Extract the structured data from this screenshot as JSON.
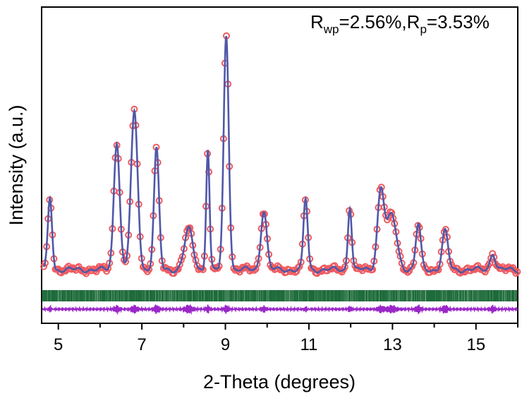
{
  "chart_data": {
    "type": "line",
    "xlabel": "2-Theta (degrees)",
    "ylabel": "Intensity (a.u.)",
    "xlim": [
      4.6,
      16.0
    ],
    "x_ticks": [
      "5",
      "7",
      "9",
      "11",
      "13",
      "15"
    ],
    "x_tick_values": [
      5,
      7,
      9,
      11,
      13,
      15
    ],
    "y_ticks_shown": false,
    "annotation": {
      "r1_base": "R",
      "r1_sub": "wp",
      "r1_val": "=2.56%,",
      "r2_base": "R",
      "r2_sub": "p",
      "r2_val": "=3.53%"
    },
    "series": [
      {
        "role": "observed",
        "marker": "open-circle",
        "color": "#ef5a5f"
      },
      {
        "role": "calculated",
        "marker": "line",
        "color": "#5058a8"
      },
      {
        "role": "bragg-positions",
        "marker": "tick",
        "color": "#1e6b3a"
      },
      {
        "role": "difference",
        "marker": "line",
        "color": "#9b27c9"
      }
    ],
    "baseline": 382,
    "peaks": [
      {
        "x": 4.8,
        "height": 280,
        "width": 0.05
      },
      {
        "x": 6.4,
        "height": 200,
        "width": 0.07
      },
      {
        "x": 6.82,
        "height": 160,
        "width": 0.08
      },
      {
        "x": 7.35,
        "height": 212,
        "width": 0.06
      },
      {
        "x": 8.12,
        "height": 325,
        "width": 0.1
      },
      {
        "x": 8.58,
        "height": 210,
        "width": 0.04
      },
      {
        "x": 9.02,
        "height": 50,
        "width": 0.06
      },
      {
        "x": 9.92,
        "height": 298,
        "width": 0.07
      },
      {
        "x": 10.92,
        "height": 282,
        "width": 0.05
      },
      {
        "x": 11.98,
        "height": 292,
        "width": 0.045
      },
      {
        "x": 12.72,
        "height": 272,
        "width": 0.08
      },
      {
        "x": 12.98,
        "height": 305,
        "width": 0.12
      },
      {
        "x": 13.62,
        "height": 318,
        "width": 0.06
      },
      {
        "x": 14.26,
        "height": 328,
        "width": 0.07
      },
      {
        "x": 15.4,
        "height": 358,
        "width": 0.06
      }
    ],
    "colors": {
      "observed": "#ef5a5f",
      "calculated": "#5058a8",
      "bragg": "#1e6b3a",
      "difference": "#9b27c9",
      "axis": "#000000"
    }
  }
}
